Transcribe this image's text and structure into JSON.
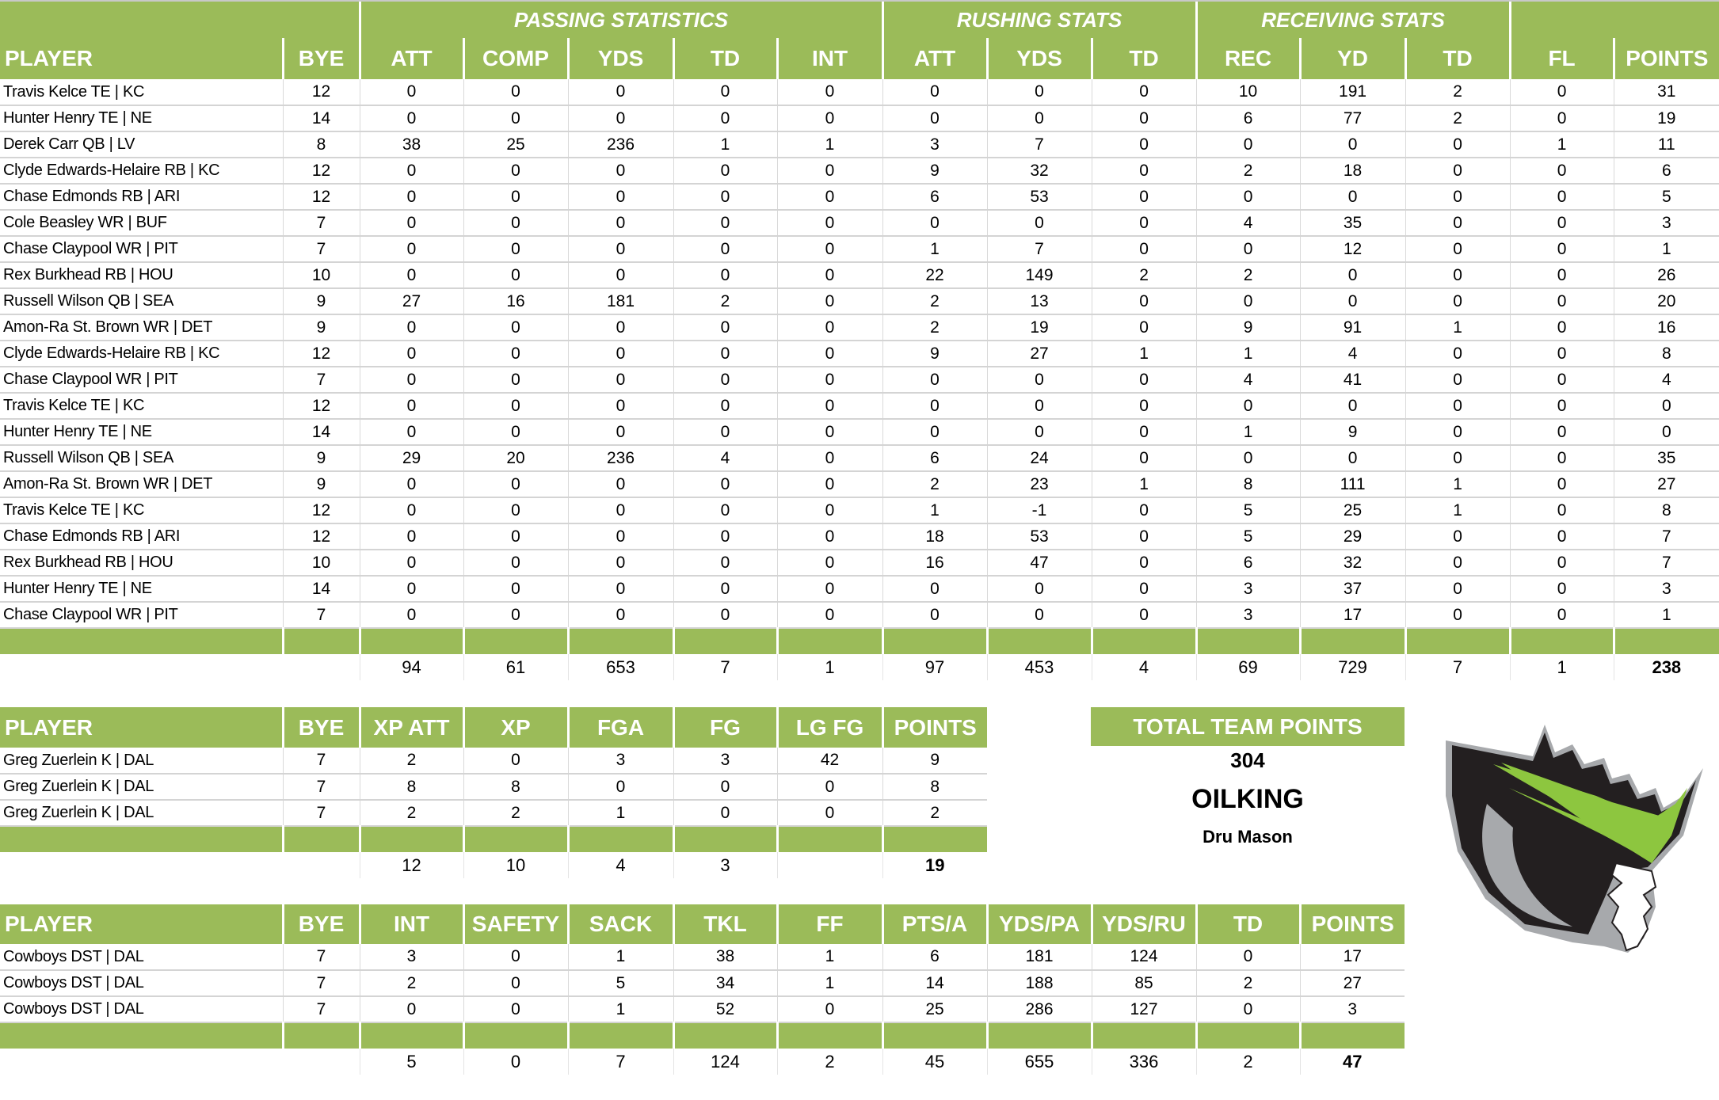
{
  "offense": {
    "group_headers": {
      "passing": "PASSING STATISTICS",
      "rushing": "RUSHING STATS",
      "receiving": "RECEIVING STATS"
    },
    "columns": [
      "PLAYER",
      "BYE",
      "ATT",
      "COMP",
      "YDS",
      "TD",
      "INT",
      "ATT",
      "YDS",
      "TD",
      "REC",
      "YD",
      "TD",
      "FL",
      "POINTS"
    ],
    "rows": [
      [
        "Travis Kelce TE | KC",
        "12",
        "0",
        "0",
        "0",
        "0",
        "0",
        "0",
        "0",
        "0",
        "10",
        "191",
        "2",
        "0",
        "31"
      ],
      [
        "Hunter Henry TE | NE",
        "14",
        "0",
        "0",
        "0",
        "0",
        "0",
        "0",
        "0",
        "0",
        "6",
        "77",
        "2",
        "0",
        "19"
      ],
      [
        "Derek Carr QB | LV",
        "8",
        "38",
        "25",
        "236",
        "1",
        "1",
        "3",
        "7",
        "0",
        "0",
        "0",
        "0",
        "1",
        "11"
      ],
      [
        "Clyde Edwards-Helaire RB | KC",
        "12",
        "0",
        "0",
        "0",
        "0",
        "0",
        "9",
        "32",
        "0",
        "2",
        "18",
        "0",
        "0",
        "6"
      ],
      [
        "Chase Edmonds RB | ARI",
        "12",
        "0",
        "0",
        "0",
        "0",
        "0",
        "6",
        "53",
        "0",
        "0",
        "0",
        "0",
        "0",
        "5"
      ],
      [
        "Cole Beasley WR | BUF",
        "7",
        "0",
        "0",
        "0",
        "0",
        "0",
        "0",
        "0",
        "0",
        "4",
        "35",
        "0",
        "0",
        "3"
      ],
      [
        "Chase Claypool WR | PIT",
        "7",
        "0",
        "0",
        "0",
        "0",
        "0",
        "1",
        "7",
        "0",
        "0",
        "12",
        "0",
        "0",
        "1"
      ],
      [
        "Rex Burkhead RB | HOU",
        "10",
        "0",
        "0",
        "0",
        "0",
        "0",
        "22",
        "149",
        "2",
        "2",
        "0",
        "0",
        "0",
        "26"
      ],
      [
        "Russell Wilson QB | SEA",
        "9",
        "27",
        "16",
        "181",
        "2",
        "0",
        "2",
        "13",
        "0",
        "0",
        "0",
        "0",
        "0",
        "20"
      ],
      [
        "Amon-Ra St. Brown WR | DET",
        "9",
        "0",
        "0",
        "0",
        "0",
        "0",
        "2",
        "19",
        "0",
        "9",
        "91",
        "1",
        "0",
        "16"
      ],
      [
        "Clyde Edwards-Helaire RB | KC",
        "12",
        "0",
        "0",
        "0",
        "0",
        "0",
        "9",
        "27",
        "1",
        "1",
        "4",
        "0",
        "0",
        "8"
      ],
      [
        "Chase Claypool WR | PIT",
        "7",
        "0",
        "0",
        "0",
        "0",
        "0",
        "0",
        "0",
        "0",
        "4",
        "41",
        "0",
        "0",
        "4"
      ],
      [
        "Travis Kelce TE | KC",
        "12",
        "0",
        "0",
        "0",
        "0",
        "0",
        "0",
        "0",
        "0",
        "0",
        "0",
        "0",
        "0",
        "0"
      ],
      [
        "Hunter Henry TE | NE",
        "14",
        "0",
        "0",
        "0",
        "0",
        "0",
        "0",
        "0",
        "0",
        "1",
        "9",
        "0",
        "0",
        "0"
      ],
      [
        "Russell Wilson QB | SEA",
        "9",
        "29",
        "20",
        "236",
        "4",
        "0",
        "6",
        "24",
        "0",
        "0",
        "0",
        "0",
        "0",
        "35"
      ],
      [
        "Amon-Ra St. Brown WR | DET",
        "9",
        "0",
        "0",
        "0",
        "0",
        "0",
        "2",
        "23",
        "1",
        "8",
        "111",
        "1",
        "0",
        "27"
      ],
      [
        "Travis Kelce TE | KC",
        "12",
        "0",
        "0",
        "0",
        "0",
        "0",
        "1",
        "-1",
        "0",
        "5",
        "25",
        "1",
        "0",
        "8"
      ],
      [
        "Chase Edmonds RB | ARI",
        "12",
        "0",
        "0",
        "0",
        "0",
        "0",
        "18",
        "53",
        "0",
        "5",
        "29",
        "0",
        "0",
        "7"
      ],
      [
        "Rex Burkhead RB | HOU",
        "10",
        "0",
        "0",
        "0",
        "0",
        "0",
        "16",
        "47",
        "0",
        "6",
        "32",
        "0",
        "0",
        "7"
      ],
      [
        "Hunter Henry TE | NE",
        "14",
        "0",
        "0",
        "0",
        "0",
        "0",
        "0",
        "0",
        "0",
        "3",
        "37",
        "0",
        "0",
        "3"
      ],
      [
        "Chase Claypool WR | PIT",
        "7",
        "0",
        "0",
        "0",
        "0",
        "0",
        "0",
        "0",
        "0",
        "3",
        "17",
        "0",
        "0",
        "1"
      ]
    ],
    "totals": [
      "",
      "",
      "94",
      "61",
      "653",
      "7",
      "1",
      "97",
      "453",
      "4",
      "69",
      "729",
      "7",
      "1",
      "238"
    ]
  },
  "kicker": {
    "columns": [
      "PLAYER",
      "BYE",
      "XP ATT",
      "XP",
      "FGA",
      "FG",
      "LG FG",
      "POINTS"
    ],
    "rows": [
      [
        "Greg Zuerlein K | DAL",
        "7",
        "2",
        "0",
        "3",
        "3",
        "42",
        "9"
      ],
      [
        "Greg Zuerlein K | DAL",
        "7",
        "8",
        "8",
        "0",
        "0",
        "0",
        "8"
      ],
      [
        "Greg Zuerlein K | DAL",
        "7",
        "2",
        "2",
        "1",
        "0",
        "0",
        "2"
      ]
    ],
    "totals": [
      "",
      "",
      "12",
      "10",
      "4",
      "3",
      "",
      "19"
    ]
  },
  "defense": {
    "columns": [
      "PLAYER",
      "BYE",
      "INT",
      "SAFETY",
      "SACK",
      "TKL",
      "FF",
      "PTS/A",
      "YDS/PA",
      "YDS/RU",
      "TD",
      "POINTS"
    ],
    "rows": [
      [
        "Cowboys DST | DAL",
        "7",
        "3",
        "0",
        "1",
        "38",
        "1",
        "6",
        "181",
        "124",
        "0",
        "17"
      ],
      [
        "Cowboys DST | DAL",
        "7",
        "2",
        "0",
        "5",
        "34",
        "1",
        "14",
        "188",
        "85",
        "2",
        "27"
      ],
      [
        "Cowboys DST | DAL",
        "7",
        "0",
        "0",
        "1",
        "52",
        "0",
        "25",
        "286",
        "127",
        "0",
        "3"
      ]
    ],
    "totals": [
      "",
      "",
      "5",
      "0",
      "7",
      "124",
      "2",
      "45",
      "655",
      "336",
      "2",
      "47"
    ]
  },
  "summary": {
    "total_label": "TOTAL TEAM POINTS",
    "total_value": "304",
    "team_name": "OILKING",
    "owner": "Dru Mason",
    "logo": "oilking-crowned-drop-logo"
  },
  "colors": {
    "header_green": "#9bbb59",
    "header_text": "#ffffff",
    "logo_green": "#8dc63f",
    "logo_black": "#231f20",
    "logo_gray": "#a7a9ac"
  }
}
